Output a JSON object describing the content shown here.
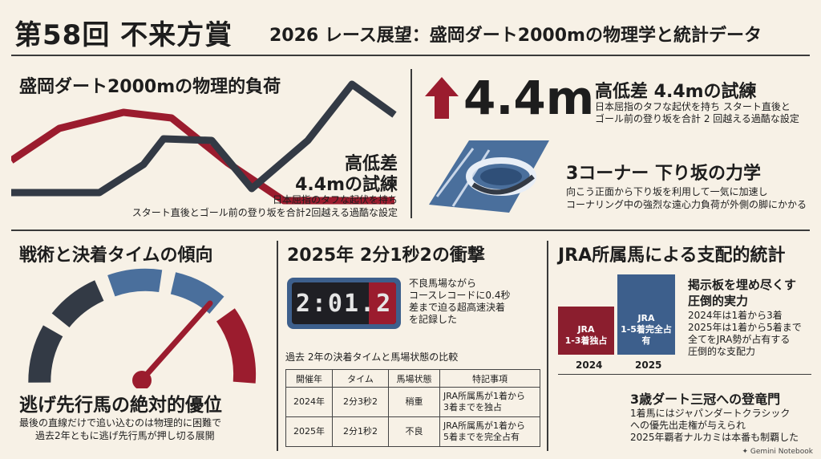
{
  "header": {
    "main_title": "第58回 不来方賞",
    "subtitle": "2026 レース展望：盛岡ダート2000mの物理学と統計データ"
  },
  "course_section": {
    "title": "盛岡ダート2000mの物理的負荷",
    "callout_title_line1": "高低差",
    "callout_title_line2": "4.4mの試練",
    "callout_text_line1": "日本屈指のタフな起伏を持ち",
    "callout_text_line2": "スタート直後とゴール前の登り坂を合計2回越える過酷な設定"
  },
  "elevation_section": {
    "big_value": "4.4m",
    "title": "高低差 4.4mの試練",
    "text_line1": "日本屈指のタフな起伏を持ち スタート直後と",
    "text_line2": "ゴール前の登り坂を合計 2 回越える過酷な設定"
  },
  "corner_section": {
    "title": "3コーナー 下り坂の力学",
    "text_line1": "向こう正面から下り坂を利用して一気に加速し",
    "text_line2": "コーナリング中の強烈な遠心力負荷が外側の脚にかかる"
  },
  "tactics_section": {
    "title": "戦術と決着タイムの傾向",
    "headline": "逃げ先行馬の絶対的優位",
    "text_line1": "最後の直線だけで追い込むのは物理的に困難で",
    "text_line2": "過去2年ともに逃げ先行馬が押し切る展開"
  },
  "record_section": {
    "title": "2025年 2分1秒2の衝撃",
    "clock_display": "2:01.2",
    "text_line1": "不良馬場ながら",
    "text_line2": "コースレコードに0.4秒",
    "text_line3": "差まで迫る超高速決着",
    "text_line4": "を記録した",
    "table_caption": "過去 2年の決着タイムと馬場状態の比較",
    "table_headers": [
      "開催年",
      "タイム",
      "馬場状態",
      "特記事項"
    ],
    "table_rows": [
      [
        "2024年",
        "2分3秒2",
        "稍重",
        "JRA所属馬が1着から",
        "3着までを独占"
      ],
      [
        "2025年",
        "2分1秒2",
        "不良",
        "JRA所属馬が1着から",
        "5着までを完全占有"
      ]
    ]
  },
  "jra_section": {
    "title": "JRA所属馬による支配的統計",
    "bars": [
      {
        "year": "2024",
        "label_line1": "JRA",
        "label_line2": "1-3着独占",
        "color": "#8b1e2e",
        "share": 0.6
      },
      {
        "year": "2025",
        "label_line1": "JRA",
        "label_line2": "1-5着完全占有",
        "color": "#3d5f8c",
        "share": 1.0
      }
    ],
    "headline_line1": "掲示板を埋め尽くす",
    "headline_line2": "圧倒的実力",
    "text_line1": "2024年は1着から3着",
    "text_line2": "2025年は1着から5着まで",
    "text_line3": "全てをJRA勢が占有する",
    "text_line4": "圧倒的な支配力"
  },
  "triple_crown_section": {
    "title": "3歳ダート三冠への登竜門",
    "text_line1": "1着馬にはジャパンダートクラシック",
    "text_line2": "への優先出走権が与えられ",
    "text_line3": "2025年覇者ナルカミは本番も制覇した"
  },
  "footer": {
    "brand": "Gemini Notebook"
  },
  "colors": {
    "accent_red": "#9b1c2e",
    "accent_blue": "#4a6f9c",
    "dark": "#333a45",
    "background": "#f7f1e6"
  }
}
